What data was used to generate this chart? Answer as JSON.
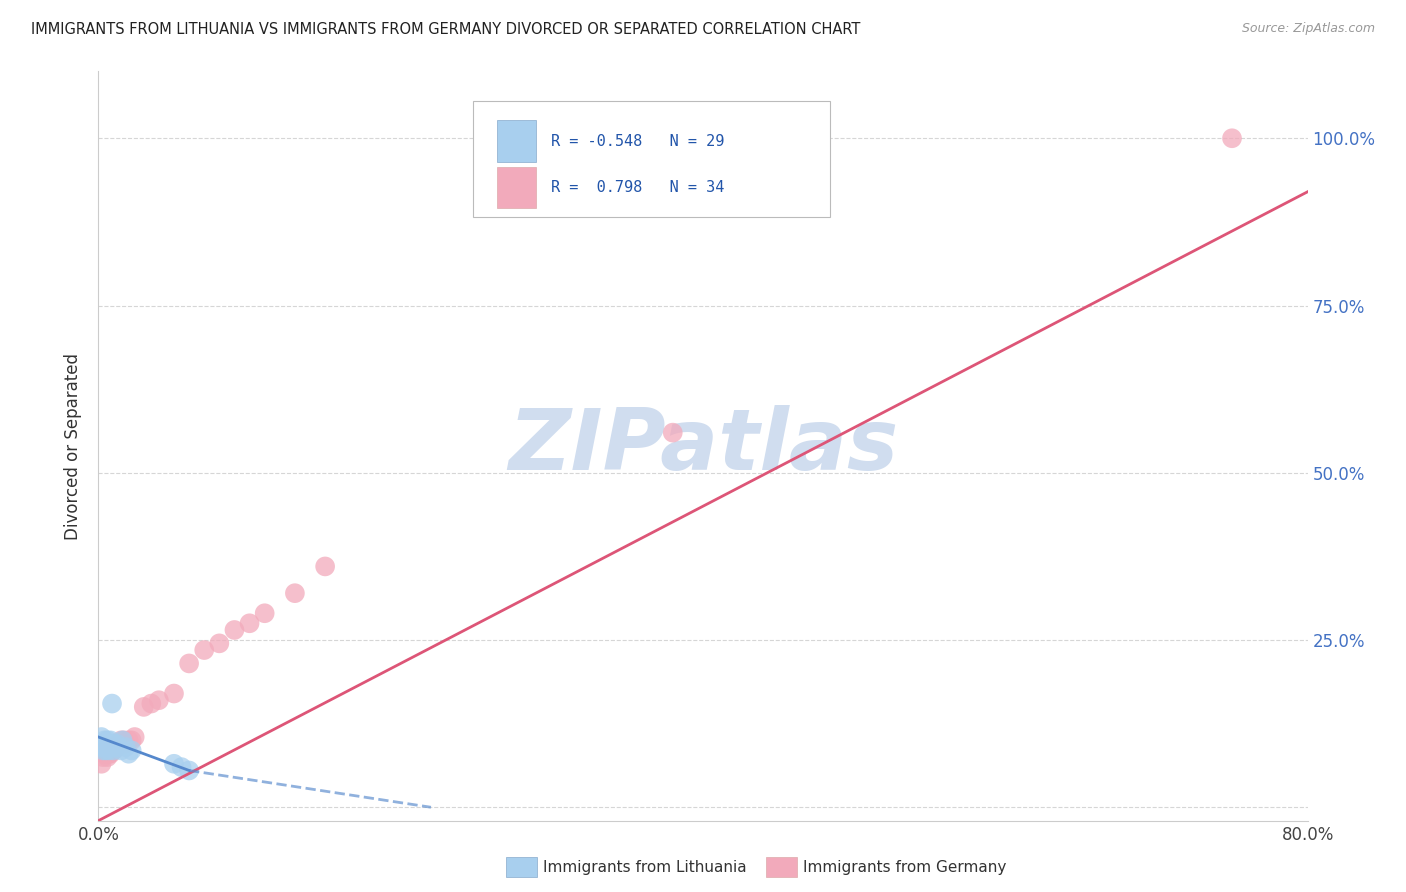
{
  "title": "IMMIGRANTS FROM LITHUANIA VS IMMIGRANTS FROM GERMANY DIVORCED OR SEPARATED CORRELATION CHART",
  "source": "Source: ZipAtlas.com",
  "ylabel_left": "Divorced or Separated",
  "legend_label1": "Immigrants from Lithuania",
  "legend_label2": "Immigrants from Germany",
  "r1": -0.548,
  "n1": 29,
  "r2": 0.798,
  "n2": 34,
  "xlim": [
    0.0,
    0.8
  ],
  "ylim": [
    -0.02,
    1.1
  ],
  "color_lithuania": "#A8CFEE",
  "color_germany": "#F2AABB",
  "color_line_lithuania": "#5588CC",
  "color_line_germany": "#DD5577",
  "watermark": "ZIPatlas",
  "watermark_color": "#D0DDEF",
  "lithuania_x": [
    0.001,
    0.002,
    0.002,
    0.003,
    0.003,
    0.004,
    0.004,
    0.005,
    0.005,
    0.006,
    0.006,
    0.007,
    0.007,
    0.008,
    0.008,
    0.009,
    0.01,
    0.01,
    0.011,
    0.012,
    0.013,
    0.015,
    0.016,
    0.018,
    0.02,
    0.022,
    0.05,
    0.055,
    0.06
  ],
  "lithuania_y": [
    0.095,
    0.09,
    0.105,
    0.085,
    0.095,
    0.09,
    0.1,
    0.085,
    0.095,
    0.09,
    0.1,
    0.085,
    0.095,
    0.09,
    0.1,
    0.155,
    0.085,
    0.095,
    0.09,
    0.095,
    0.09,
    0.085,
    0.1,
    0.09,
    0.08,
    0.085,
    0.065,
    0.06,
    0.055
  ],
  "germany_x": [
    0.002,
    0.003,
    0.004,
    0.005,
    0.006,
    0.007,
    0.008,
    0.009,
    0.01,
    0.011,
    0.012,
    0.013,
    0.014,
    0.015,
    0.016,
    0.017,
    0.018,
    0.02,
    0.022,
    0.024,
    0.03,
    0.035,
    0.04,
    0.05,
    0.06,
    0.07,
    0.08,
    0.09,
    0.1,
    0.11,
    0.13,
    0.15,
    0.38,
    0.75
  ],
  "germany_y": [
    0.065,
    0.075,
    0.08,
    0.085,
    0.075,
    0.08,
    0.08,
    0.085,
    0.085,
    0.09,
    0.09,
    0.095,
    0.095,
    0.1,
    0.095,
    0.1,
    0.095,
    0.1,
    0.1,
    0.105,
    0.15,
    0.155,
    0.16,
    0.17,
    0.215,
    0.235,
    0.245,
    0.265,
    0.275,
    0.29,
    0.32,
    0.36,
    0.56,
    1.0
  ],
  "germ_line_x0": 0.0,
  "germ_line_y0": -0.02,
  "germ_line_x1": 0.8,
  "germ_line_y1": 0.92,
  "lith_line_x0": 0.0,
  "lith_line_y0": 0.105,
  "lith_line_x1_solid": 0.06,
  "lith_line_y1_solid": 0.055,
  "lith_line_x1_dash": 0.22,
  "lith_line_y1_dash": 0.0
}
